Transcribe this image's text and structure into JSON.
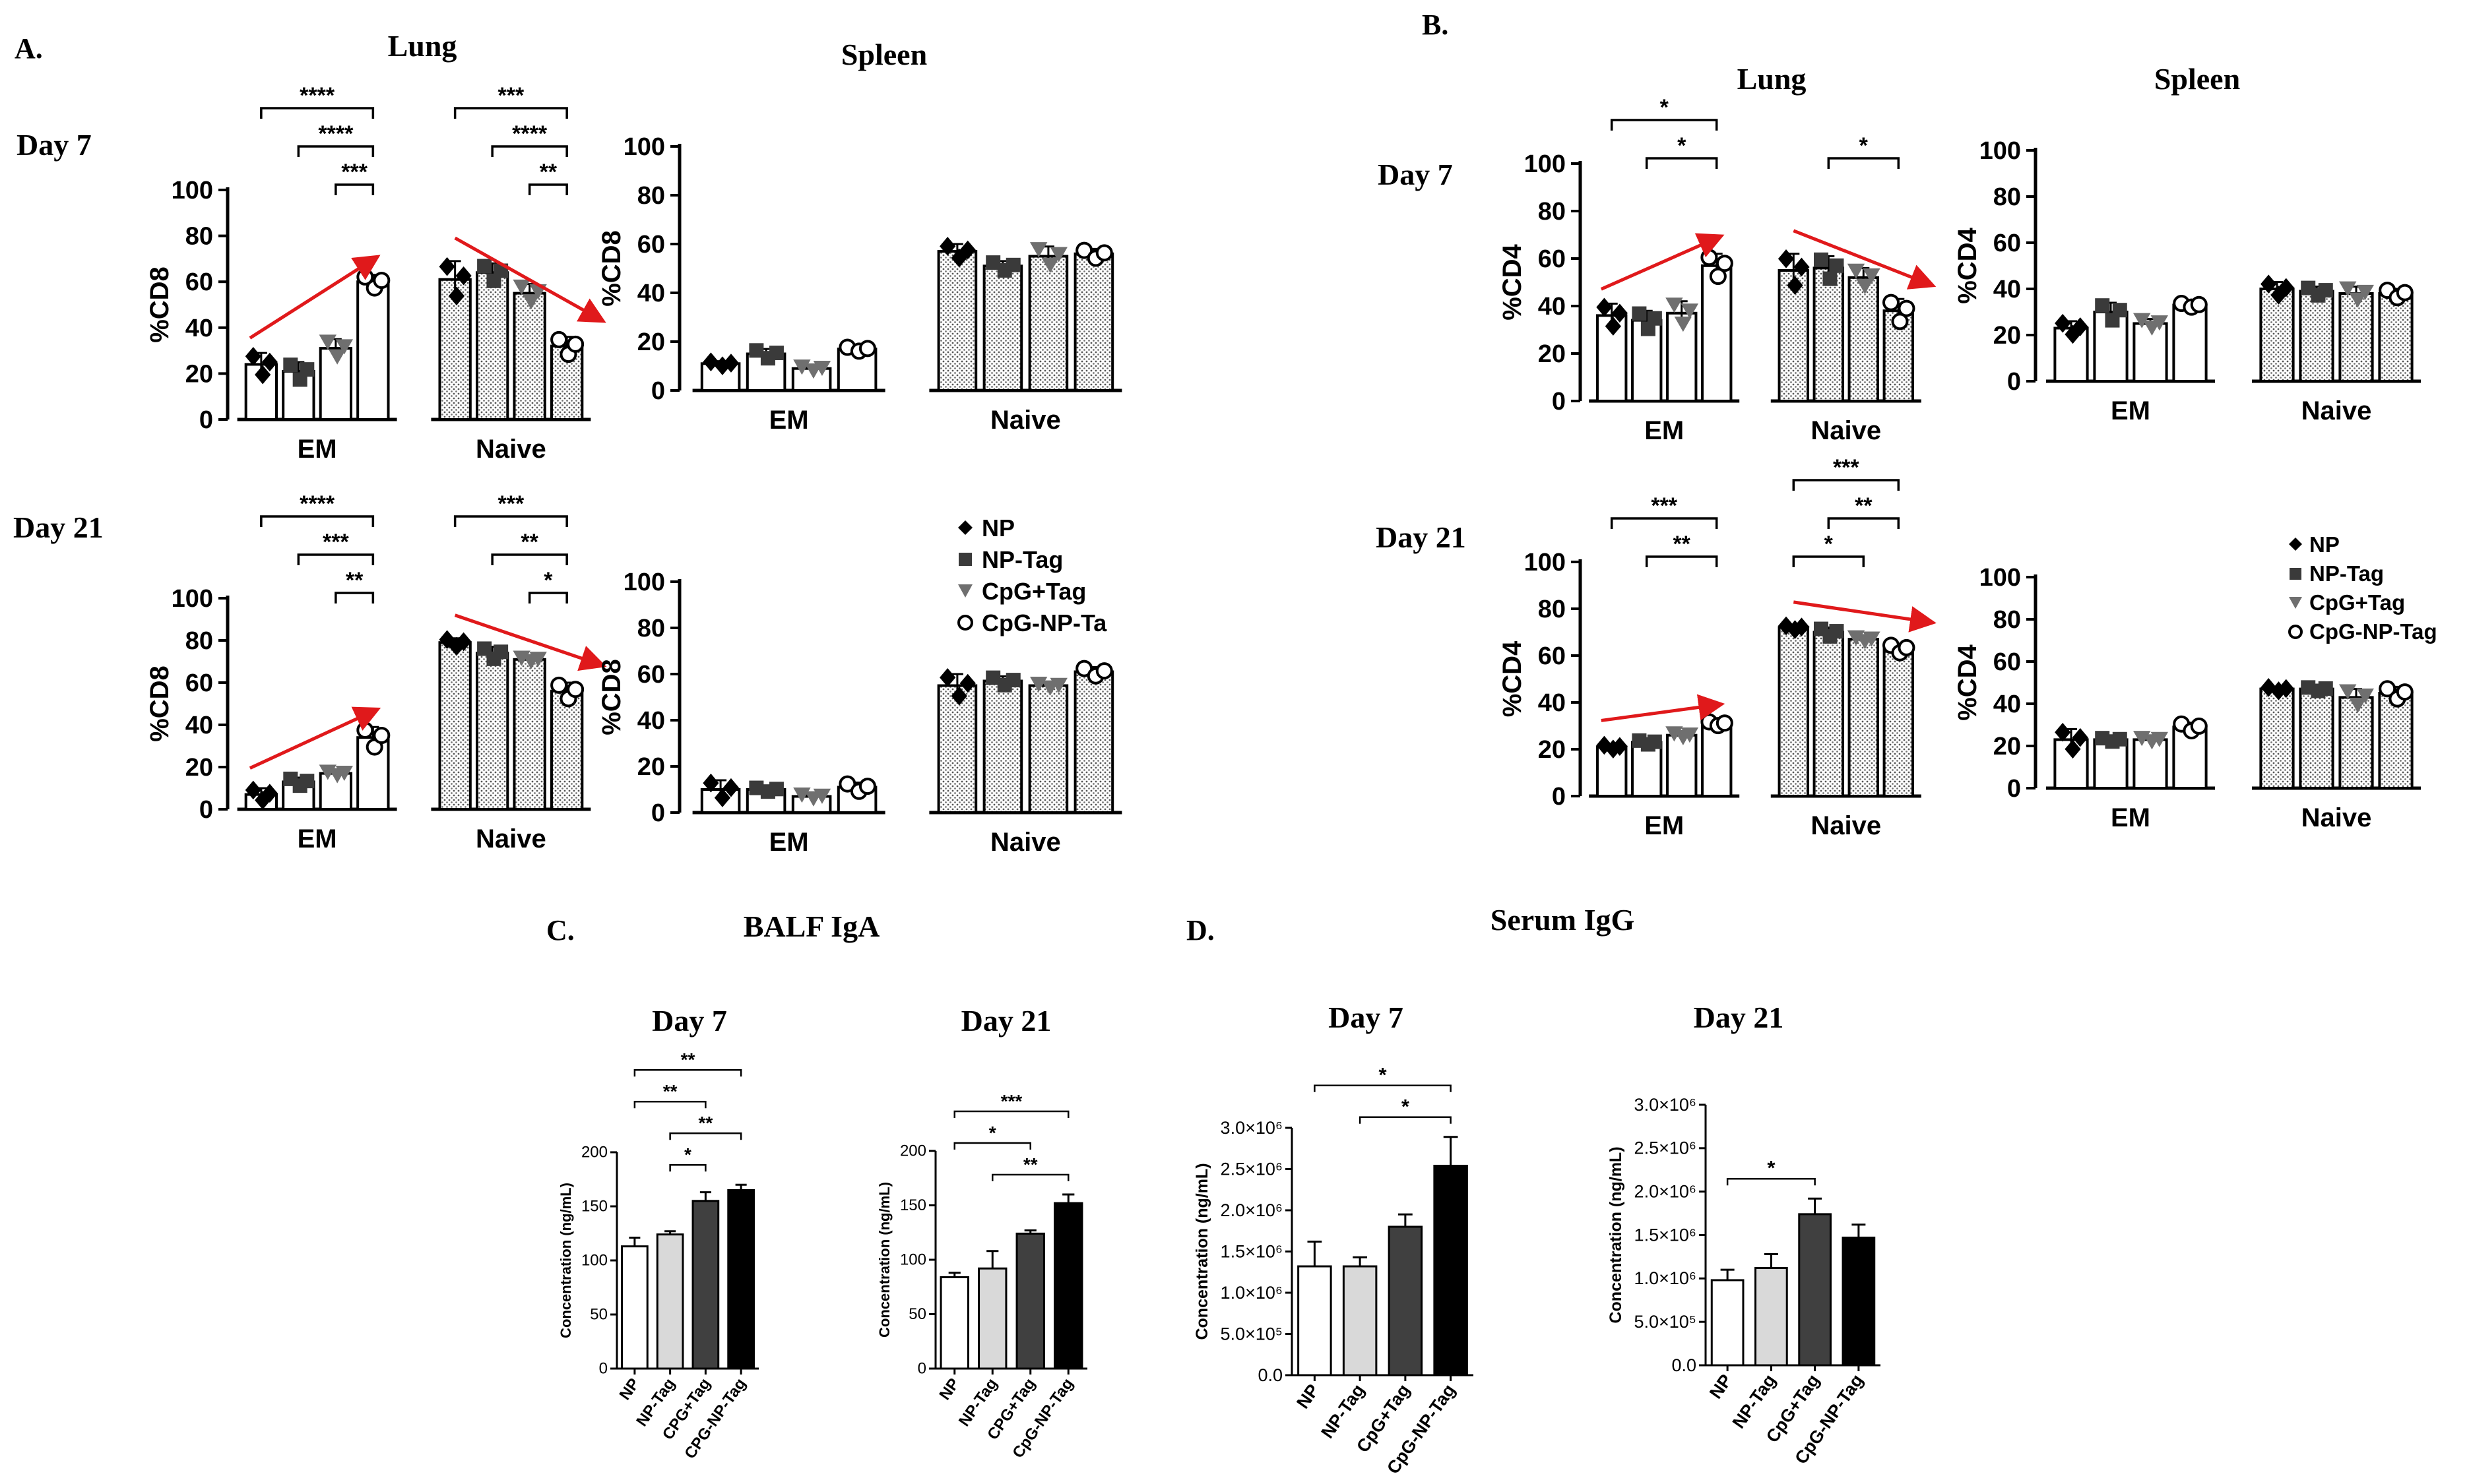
{
  "labels": {
    "A": "A.",
    "B": "B.",
    "C": "C.",
    "D": "D.",
    "lung": "Lung",
    "spleen": "Spleen",
    "day7": "Day 7",
    "day21": "Day 21",
    "balf": "BALF IgA",
    "serum": "Serum IgG"
  },
  "legend": {
    "items": [
      "NP",
      "NP-Tag",
      "CpG+Tag",
      "CpG-NP-Tag"
    ],
    "items_clipped": [
      "NP",
      "NP-Tag",
      "CpG+Tag",
      "CpG-NP-Ta"
    ]
  },
  "colors": {
    "accent_arrow": "#e0191b",
    "np": "#000000",
    "np_tag": "#3a3a3a",
    "cpg_tag": "#6f6f6f",
    "cpg_np_tag": "#ffffff",
    "bar_c_np": "#ffffff",
    "bar_c_nptag": "#d9d9d9",
    "bar_c_cpgtag": "#404040",
    "bar_c_cpgnptag": "#000000"
  },
  "chart_data": [
    {
      "id": "A-lung-d7",
      "type": "bar",
      "ylabel": "%CD8",
      "ylim": [
        0,
        100
      ],
      "yticks": [
        0,
        20,
        40,
        60,
        80,
        100
      ],
      "categories": [
        "EM",
        "Naive"
      ],
      "series": [
        {
          "name": "NP",
          "values": [
            24,
            61
          ],
          "errors": [
            5,
            8
          ]
        },
        {
          "name": "NP-Tag",
          "values": [
            21,
            64
          ],
          "errors": [
            4,
            4
          ]
        },
        {
          "name": "CpG+Tag",
          "values": [
            31,
            55
          ],
          "errors": [
            4,
            4
          ]
        },
        {
          "name": "CpG-NP-Tag",
          "values": [
            60,
            32
          ],
          "errors": [
            3,
            4
          ]
        }
      ],
      "significance": [
        {
          "label": "****",
          "group": 0,
          "from": 0,
          "to": 3
        },
        {
          "label": "****",
          "group": 0,
          "from": 1,
          "to": 3
        },
        {
          "label": "***",
          "group": 0,
          "from": 2,
          "to": 3
        },
        {
          "label": "***",
          "group": 1,
          "from": 0,
          "to": 3
        },
        {
          "label": "****",
          "group": 1,
          "from": 1,
          "to": 3
        },
        {
          "label": "**",
          "group": 1,
          "from": 2,
          "to": 3
        }
      ],
      "trend_arrows": [
        "up",
        "down"
      ]
    },
    {
      "id": "A-spleen-d7",
      "type": "bar",
      "ylabel": "%CD8",
      "ylim": [
        0,
        100
      ],
      "yticks": [
        0,
        20,
        40,
        60,
        80,
        100
      ],
      "categories": [
        "EM",
        "Naive"
      ],
      "series": [
        {
          "name": "NP",
          "values": [
            11,
            57
          ],
          "errors": [
            1,
            3
          ]
        },
        {
          "name": "NP-Tag",
          "values": [
            15,
            51
          ],
          "errors": [
            2,
            2
          ]
        },
        {
          "name": "CpG+Tag",
          "values": [
            9,
            55
          ],
          "errors": [
            1,
            4
          ]
        },
        {
          "name": "CpG-NP-Tag",
          "values": [
            17,
            56
          ],
          "errors": [
            1,
            2
          ]
        }
      ],
      "significance": [],
      "trend_arrows": []
    },
    {
      "id": "A-lung-d21",
      "type": "bar",
      "ylabel": "%CD8",
      "ylim": [
        0,
        100
      ],
      "yticks": [
        0,
        20,
        40,
        60,
        80,
        100
      ],
      "categories": [
        "EM",
        "Naive"
      ],
      "series": [
        {
          "name": "NP",
          "values": [
            7,
            79
          ],
          "errors": [
            3,
            2
          ]
        },
        {
          "name": "NP-Tag",
          "values": [
            13,
            74
          ],
          "errors": [
            2,
            3
          ]
        },
        {
          "name": "CpG+Tag",
          "values": [
            17,
            71
          ],
          "errors": [
            1,
            1
          ]
        },
        {
          "name": "CpG-NP-Tag",
          "values": [
            34,
            56
          ],
          "errors": [
            5,
            4
          ]
        }
      ],
      "significance": [
        {
          "label": "****",
          "group": 0,
          "from": 0,
          "to": 3
        },
        {
          "label": "***",
          "group": 0,
          "from": 1,
          "to": 3
        },
        {
          "label": "**",
          "group": 0,
          "from": 2,
          "to": 3
        },
        {
          "label": "***",
          "group": 1,
          "from": 0,
          "to": 3
        },
        {
          "label": "**",
          "group": 1,
          "from": 1,
          "to": 3
        },
        {
          "label": "*",
          "group": 1,
          "from": 2,
          "to": 3
        }
      ],
      "trend_arrows": [
        "up",
        "down"
      ]
    },
    {
      "id": "A-spleen-d21",
      "type": "bar",
      "ylabel": "%CD8",
      "ylim": [
        0,
        100
      ],
      "yticks": [
        0,
        20,
        40,
        60,
        80,
        100
      ],
      "categories": [
        "EM",
        "Naive"
      ],
      "series": [
        {
          "name": "NP",
          "values": [
            10,
            55
          ],
          "errors": [
            4,
            5
          ]
        },
        {
          "name": "NP-Tag",
          "values": [
            10,
            57
          ],
          "errors": [
            1,
            2
          ]
        },
        {
          "name": "CpG+Tag",
          "values": [
            7,
            55
          ],
          "errors": [
            1,
            1
          ]
        },
        {
          "name": "CpG-NP-Tag",
          "values": [
            11,
            61
          ],
          "errors": [
            2,
            2
          ]
        }
      ],
      "significance": [],
      "trend_arrows": []
    },
    {
      "id": "B-lung-d7",
      "type": "bar",
      "ylabel": "%CD4",
      "ylim": [
        0,
        100
      ],
      "yticks": [
        0,
        20,
        40,
        60,
        80,
        100
      ],
      "categories": [
        "EM",
        "Naive"
      ],
      "series": [
        {
          "name": "NP",
          "values": [
            36,
            55
          ],
          "errors": [
            5,
            7
          ]
        },
        {
          "name": "NP-Tag",
          "values": [
            34,
            56
          ],
          "errors": [
            4,
            5
          ]
        },
        {
          "name": "CpG+Tag",
          "values": [
            37,
            52
          ],
          "errors": [
            5,
            4
          ]
        },
        {
          "name": "CpG-NP-Tag",
          "values": [
            57,
            38
          ],
          "errors": [
            5,
            5
          ]
        }
      ],
      "significance": [
        {
          "label": "*",
          "group": 0,
          "from": 0,
          "to": 3
        },
        {
          "label": "*",
          "group": 0,
          "from": 1,
          "to": 3
        },
        {
          "label": "*",
          "group": 1,
          "from": 1,
          "to": 3
        }
      ],
      "trend_arrows": [
        "up",
        "down"
      ]
    },
    {
      "id": "B-spleen-d7",
      "type": "bar",
      "ylabel": "%CD4",
      "ylim": [
        0,
        100
      ],
      "yticks": [
        0,
        20,
        40,
        60,
        80,
        100
      ],
      "categories": [
        "EM",
        "Naive"
      ],
      "series": [
        {
          "name": "NP",
          "values": [
            23,
            40
          ],
          "errors": [
            3,
            3
          ]
        },
        {
          "name": "NP-Tag",
          "values": [
            30,
            39
          ],
          "errors": [
            4,
            2
          ]
        },
        {
          "name": "CpG+Tag",
          "values": [
            25,
            38
          ],
          "errors": [
            2,
            3
          ]
        },
        {
          "name": "CpG-NP-Tag",
          "values": [
            33,
            38
          ],
          "errors": [
            1,
            2
          ]
        }
      ],
      "significance": [],
      "trend_arrows": []
    },
    {
      "id": "B-lung-d21",
      "type": "bar",
      "ylabel": "%CD4",
      "ylim": [
        0,
        100
      ],
      "yticks": [
        0,
        20,
        40,
        60,
        80,
        100
      ],
      "categories": [
        "EM",
        "Naive"
      ],
      "series": [
        {
          "name": "NP",
          "values": [
            21,
            72
          ],
          "errors": [
            1,
            1
          ]
        },
        {
          "name": "NP-Tag",
          "values": [
            23,
            70
          ],
          "errors": [
            1,
            2
          ]
        },
        {
          "name": "CpG+Tag",
          "values": [
            26,
            67
          ],
          "errors": [
            1,
            1
          ]
        },
        {
          "name": "CpG-NP-Tag",
          "values": [
            31,
            63
          ],
          "errors": [
            1,
            2
          ]
        }
      ],
      "significance": [
        {
          "label": "***",
          "group": 0,
          "from": 0,
          "to": 3
        },
        {
          "label": "**",
          "group": 0,
          "from": 1,
          "to": 3
        },
        {
          "label": "***",
          "group": 1,
          "from": 0,
          "to": 3
        },
        {
          "label": "*",
          "group": 1,
          "from": 0,
          "to": 2
        },
        {
          "label": "**",
          "group": 1,
          "from": 1,
          "to": 3
        }
      ],
      "trend_arrows": [
        "up",
        "down"
      ]
    },
    {
      "id": "B-spleen-d21",
      "type": "bar",
      "ylabel": "%CD4",
      "ylim": [
        0,
        100
      ],
      "yticks": [
        0,
        20,
        40,
        60,
        80,
        100
      ],
      "categories": [
        "EM",
        "Naive"
      ],
      "series": [
        {
          "name": "NP",
          "values": [
            23,
            47
          ],
          "errors": [
            5,
            1
          ]
        },
        {
          "name": "NP-Tag",
          "values": [
            23,
            47
          ],
          "errors": [
            1,
            1
          ]
        },
        {
          "name": "CpG+Tag",
          "values": [
            23,
            43
          ],
          "errors": [
            1,
            4
          ]
        },
        {
          "name": "CpG-NP-Tag",
          "values": [
            29,
            45
          ],
          "errors": [
            2,
            3
          ]
        }
      ],
      "significance": [],
      "trend_arrows": []
    },
    {
      "id": "C-d7",
      "type": "bar",
      "ylabel": "Concentration (ng/mL)",
      "ylim": [
        0,
        200
      ],
      "yticks": [
        "0",
        "50",
        "100",
        "150",
        "200"
      ],
      "categories": [
        "NP",
        "NP-Tag",
        "CPG+Tag",
        "CPG-NP-Tag"
      ],
      "values": [
        113,
        124,
        155,
        165
      ],
      "errors": [
        8,
        3,
        8,
        5
      ],
      "significance": [
        {
          "label": "**",
          "from": 0,
          "to": 3
        },
        {
          "label": "**",
          "from": 0,
          "to": 2
        },
        {
          "label": "**",
          "from": 1,
          "to": 3
        },
        {
          "label": "*",
          "from": 1,
          "to": 2
        }
      ]
    },
    {
      "id": "C-d21",
      "type": "bar",
      "ylabel": "Concentration (ng/mL)",
      "ylim": [
        0,
        200
      ],
      "yticks": [
        "0",
        "50",
        "100",
        "150",
        "200"
      ],
      "categories": [
        "NP",
        "NP-Tag",
        "CPG+Tag",
        "CpG-NP-Tag"
      ],
      "values": [
        84,
        92,
        124,
        152
      ],
      "errors": [
        4,
        16,
        3,
        8
      ],
      "significance": [
        {
          "label": "***",
          "from": 0,
          "to": 3
        },
        {
          "label": "*",
          "from": 0,
          "to": 2
        },
        {
          "label": "**",
          "from": 1,
          "to": 3
        }
      ]
    },
    {
      "id": "D-d7",
      "type": "bar",
      "ylabel": "Concentration (ng/mL)",
      "ylim": [
        0,
        3000000
      ],
      "yticks": [
        "0.0",
        "5.0×10⁵",
        "1.0×10⁶",
        "1.5×10⁶",
        "2.0×10⁶",
        "2.5×10⁶",
        "3.0×10⁶"
      ],
      "categories": [
        "NP",
        "NP-Tag",
        "CpG+Tag",
        "CpG-NP-Tag"
      ],
      "values": [
        1320000,
        1320000,
        1800000,
        2540000
      ],
      "errors": [
        300000,
        110000,
        150000,
        350000
      ],
      "significance": [
        {
          "label": "*",
          "from": 0,
          "to": 3
        },
        {
          "label": "*",
          "from": 1,
          "to": 3
        }
      ]
    },
    {
      "id": "D-d21",
      "type": "bar",
      "ylabel": "Concentration (ng/mL)",
      "ylim": [
        0,
        3000000
      ],
      "yticks": [
        "0.0",
        "5.0×10⁵",
        "1.0×10⁶",
        "1.5×10⁶",
        "2.0×10⁶",
        "2.5×10⁶",
        "3.0×10⁶"
      ],
      "categories": [
        "NP",
        "NP-Tag",
        "CpG+Tag",
        "CpG-NP-Tag"
      ],
      "values": [
        980000,
        1120000,
        1740000,
        1470000
      ],
      "errors": [
        120000,
        160000,
        180000,
        150000
      ],
      "significance": [
        {
          "label": "*",
          "from": 0,
          "to": 2
        }
      ]
    }
  ]
}
